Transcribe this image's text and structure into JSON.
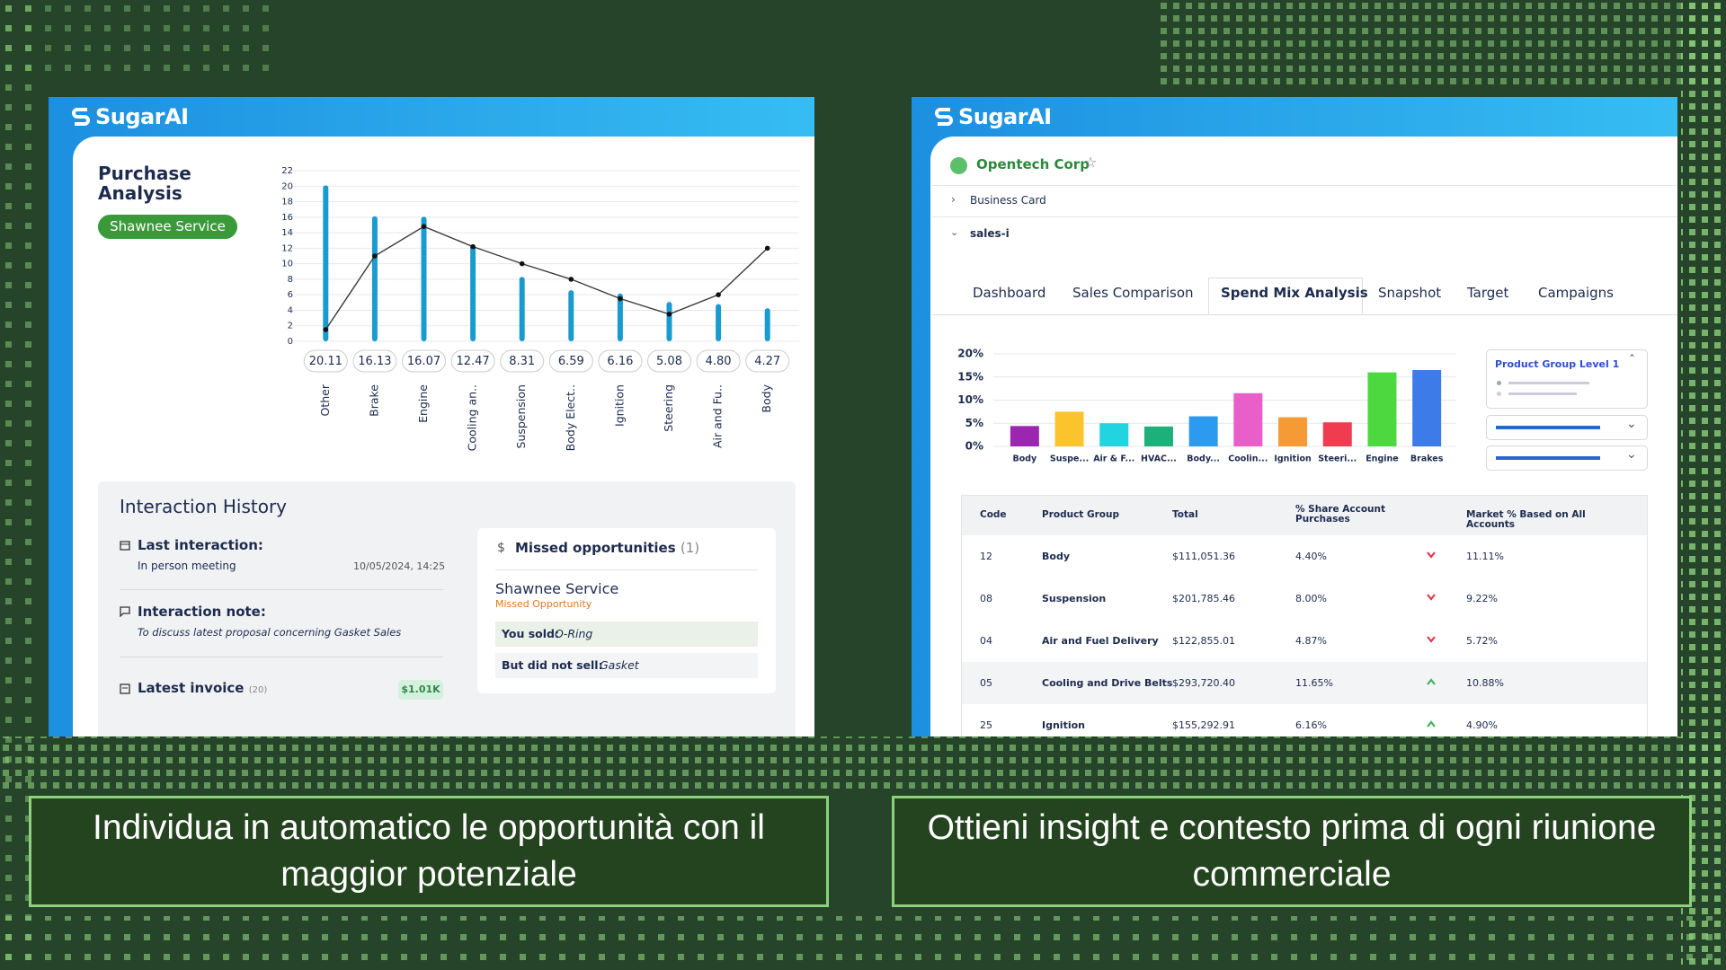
{
  "left_panel": {
    "logo": "SugarAI",
    "title": "Purchase Analysis",
    "badge": "Shawnee Service",
    "interaction_history": {
      "title": "Interaction History",
      "last_interaction": {
        "label": "Last interaction:",
        "value": "In person meeting",
        "date": "10/05/2024, 14:25"
      },
      "note": {
        "label": "Interaction note:",
        "value": "To discuss latest proposal concerning Gasket Sales"
      },
      "invoice": {
        "label": "Latest invoice",
        "count": "(20)",
        "amount": "$1.01K"
      }
    },
    "missed": {
      "title": "Missed opportunities",
      "count": "(1)",
      "customer": "Shawnee Service",
      "status": "Missed Opportunity",
      "sold_label": "You sold:",
      "sold": "O-Ring",
      "not_sold_label": "But did not sell:",
      "not_sold": "Gasket"
    }
  },
  "right_panel": {
    "logo": "SugarAI",
    "account": "Opentech Corp",
    "sections": [
      "Business Card",
      "sales-i"
    ],
    "tabs": [
      "Dashboard",
      "Sales Comparison",
      "Spend Mix Analysis",
      "Snapshot",
      "Target",
      "Campaigns"
    ],
    "active_tab": 2,
    "filter_title": "Product Group Level 1",
    "table": {
      "columns": [
        "Code",
        "Product Group",
        "Total",
        "% Share Account Purchases",
        "Market % Based on All Accounts"
      ],
      "rows": [
        [
          "12",
          "Body",
          "$111,051.36",
          "4.40%",
          "11.11%"
        ],
        [
          "08",
          "Suspension",
          "$201,785.46",
          "8.00%",
          "9.22%"
        ],
        [
          "04",
          "Air and Fuel Delivery",
          "$122,855.01",
          "4.87%",
          "5.72%"
        ],
        [
          "05",
          "Cooling and Drive Belts",
          "$293,720.40",
          "11.65%",
          "10.88%"
        ],
        [
          "25",
          "Ignition",
          "$155,292.91",
          "6.16%",
          "4.90%"
        ]
      ],
      "trends": [
        "down",
        "down",
        "down",
        "up",
        "up"
      ]
    }
  },
  "captions": [
    "Individua in automatico le opportunità con il maggior potenziale",
    "Ottieni insight e contesto prima di ogni riunione commerciale"
  ],
  "chart_data": [
    {
      "type": "bar",
      "categories": [
        "Other",
        "Brake",
        "Engine",
        "Cooling an..",
        "Suspension",
        "Body Elect..",
        "Ignition",
        "Steering",
        "Air and Fu..",
        "Body"
      ],
      "series": [
        {
          "type": "bar",
          "color": "#1a9bd0",
          "values": [
            20.11,
            16.13,
            16.07,
            12.47,
            8.31,
            6.59,
            6.16,
            5.08,
            4.8,
            4.27
          ],
          "value_labels": [
            "20.11",
            "16.13",
            "16.07",
            "12.47",
            "8.31",
            "6.59",
            "6.16",
            "5.08",
            "4.80",
            "4.27"
          ]
        },
        {
          "type": "line",
          "color": "#3a3a3a",
          "values": [
            1.5,
            11,
            14.8,
            12.2,
            10,
            8,
            5.5,
            3.5,
            6,
            12
          ]
        }
      ],
      "ylim": [
        0,
        22
      ],
      "yticks": [
        0,
        2,
        4,
        6,
        8,
        10,
        12,
        14,
        16,
        18,
        20,
        22
      ],
      "grid": true
    },
    {
      "type": "bar",
      "categories": [
        "Body",
        "Suspe...",
        "Air & F...",
        "HVAC...",
        "Body...",
        "Coolin...",
        "Ignition",
        "Steeri...",
        "Engine",
        "Brakes"
      ],
      "values": [
        4.4,
        7.5,
        5,
        4.3,
        6.5,
        11.5,
        6.3,
        5.2,
        16,
        16.5
      ],
      "colors": [
        "#9b27b0",
        "#fbc42d",
        "#22d3e0",
        "#1db07a",
        "#2c9bef",
        "#e85fc9",
        "#f59a35",
        "#ef3d4f",
        "#4cd83e",
        "#3d7be8"
      ],
      "ylim": [
        0,
        20
      ],
      "yticks": [
        {
          "value": 0,
          "label": "0%"
        },
        {
          "value": 5,
          "label": "5%"
        },
        {
          "value": 10,
          "label": "10%"
        },
        {
          "value": 15,
          "label": "15%"
        },
        {
          "value": 20,
          "label": "20%"
        }
      ],
      "grid": true
    }
  ]
}
